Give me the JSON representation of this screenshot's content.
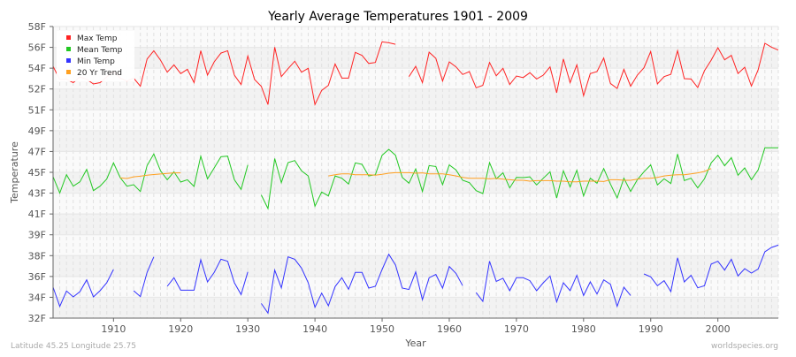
{
  "chart_data": {
    "type": "line",
    "title": "Yearly Average Temperatures 1901 - 2009",
    "xlabel": "Year",
    "ylabel": "Temperature",
    "x": {
      "start": 1901,
      "end": 2009
    },
    "xlim": [
      1901,
      2009
    ],
    "ylim": [
      32,
      58
    ],
    "x_ticks": [
      1910,
      1920,
      1930,
      1940,
      1950,
      1960,
      1970,
      1980,
      1990,
      2000
    ],
    "y_ticks": [
      {
        "value": 32,
        "label": "32F"
      },
      {
        "value": 33.857,
        "label": "34F"
      },
      {
        "value": 35.714,
        "label": "36F"
      },
      {
        "value": 37.571,
        "label": "38F"
      },
      {
        "value": 39.429,
        "label": "39F"
      },
      {
        "value": 41.286,
        "label": "41F"
      },
      {
        "value": 43.143,
        "label": "43F"
      },
      {
        "value": 45,
        "label": "45F"
      },
      {
        "value": 46.857,
        "label": "47F"
      },
      {
        "value": 48.714,
        "label": "49F"
      },
      {
        "value": 50.571,
        "label": "51F"
      },
      {
        "value": 52.429,
        "label": "52F"
      },
      {
        "value": 54.286,
        "label": "54F"
      },
      {
        "value": 56.143,
        "label": "56F"
      },
      {
        "value": 58,
        "label": "58F"
      }
    ],
    "grid": true,
    "legend_position": "top-left",
    "series": [
      {
        "name": "Max Temp",
        "color": "#ff2222",
        "values": [
          54.45,
          53.27,
          53.3,
          53.0,
          53.5,
          53.3,
          52.88,
          53.0,
          53.5,
          54.0,
          53.4,
          53.14,
          53.4,
          52.67,
          55.1,
          55.84,
          55.0,
          53.93,
          54.58,
          53.8,
          54.19,
          53.0,
          55.84,
          53.67,
          54.85,
          55.63,
          55.84,
          53.67,
          52.82,
          55.37,
          53.27,
          52.67,
          51.04,
          56.16,
          53.53,
          54.24,
          54.9,
          53.93,
          54.27,
          51.04,
          52.3,
          52.75,
          54.66,
          53.4,
          53.4,
          55.69,
          55.42,
          54.71,
          54.79,
          56.63,
          56.55,
          56.42,
          null,
          53.53,
          54.45,
          53.0,
          55.71,
          55.16,
          53.14,
          54.85,
          54.4,
          53.72,
          53.98,
          52.54,
          52.75,
          54.79,
          53.61,
          54.27,
          52.82,
          53.59,
          53.45,
          53.88,
          53.32,
          53.67,
          54.4,
          52.09,
          55.11,
          53.0,
          54.58,
          51.83,
          53.8,
          53.98,
          55.19,
          52.93,
          52.48,
          54.19,
          52.67,
          53.67,
          54.32,
          55.77,
          52.88,
          53.53,
          53.74,
          55.84,
          53.35,
          53.32,
          52.56,
          54.06,
          55.0,
          56.11,
          55.03,
          55.42,
          53.8,
          54.37,
          52.69,
          54.14,
          56.5,
          56.16,
          55.9
        ]
      },
      {
        "name": "Mean Temp",
        "color": "#22c822",
        "values": [
          44.6,
          43.16,
          44.79,
          43.76,
          44.16,
          45.26,
          43.37,
          43.76,
          44.4,
          45.84,
          44.53,
          43.76,
          43.9,
          43.29,
          45.6,
          46.63,
          45.13,
          44.34,
          45.05,
          44.13,
          44.34,
          43.74,
          46.44,
          44.42,
          45.39,
          46.39,
          46.44,
          44.34,
          43.48,
          45.66,
          null,
          42.98,
          41.77,
          46.23,
          44.08,
          45.87,
          46.05,
          45.13,
          44.68,
          41.98,
          43.24,
          42.9,
          44.68,
          44.47,
          43.95,
          45.84,
          45.71,
          44.68,
          44.79,
          46.52,
          47.05,
          46.52,
          44.55,
          44.03,
          45.31,
          43.29,
          45.6,
          45.52,
          43.9,
          45.66,
          45.21,
          44.29,
          44.08,
          43.37,
          43.11,
          45.87,
          44.42,
          44.95,
          43.61,
          44.55,
          44.53,
          44.6,
          43.87,
          44.47,
          45.05,
          42.71,
          45.13,
          43.69,
          45.18,
          42.9,
          44.47,
          44.03,
          45.34,
          43.95,
          42.71,
          44.47,
          43.29,
          44.34,
          45.05,
          45.66,
          43.87,
          44.42,
          44.0,
          46.63,
          44.26,
          44.47,
          43.61,
          44.42,
          45.84,
          46.52,
          45.58,
          46.31,
          44.74,
          45.39,
          44.34,
          45.21,
          47.18,
          47.18,
          47.18
        ]
      },
      {
        "name": "Min Temp",
        "color": "#3333ff",
        "values": [
          34.76,
          33.05,
          34.42,
          33.89,
          34.36,
          35.41,
          33.89,
          34.44,
          35.15,
          36.33,
          null,
          null,
          34.44,
          33.92,
          36.07,
          37.46,
          null,
          34.84,
          35.6,
          34.49,
          34.49,
          34.49,
          37.2,
          35.23,
          36.07,
          37.25,
          37.07,
          35.15,
          34.1,
          36.12,
          null,
          33.31,
          32.45,
          36.28,
          34.7,
          37.46,
          37.25,
          36.46,
          35.15,
          32.97,
          34.23,
          33.1,
          34.81,
          35.6,
          34.57,
          36.07,
          36.07,
          34.68,
          34.84,
          36.33,
          37.7,
          36.73,
          34.68,
          34.55,
          36.12,
          33.65,
          35.6,
          35.89,
          34.68,
          36.6,
          35.99,
          34.89,
          null,
          34.28,
          33.5,
          37.07,
          35.28,
          35.55,
          34.44,
          35.6,
          35.6,
          35.34,
          34.44,
          35.15,
          35.76,
          33.44,
          35.15,
          34.44,
          35.81,
          34.02,
          35.23,
          34.15,
          35.41,
          35.02,
          33.05,
          34.76,
          34.02,
          null,
          35.94,
          35.68,
          34.89,
          35.34,
          34.36,
          37.38,
          35.23,
          35.81,
          34.7,
          34.89,
          36.81,
          37.07,
          36.28,
          37.25,
          35.76,
          36.41,
          36.02,
          36.38,
          37.91,
          38.3,
          38.51
        ]
      },
      {
        "name": "20 Yr Trend",
        "color": "#ffa020",
        "values": [
          null,
          null,
          null,
          null,
          null,
          null,
          null,
          null,
          null,
          null,
          44.5,
          44.45,
          44.6,
          44.65,
          44.75,
          44.8,
          44.85,
          44.9,
          44.95,
          44.95,
          null,
          null,
          null,
          null,
          null,
          null,
          null,
          null,
          null,
          null,
          null,
          null,
          null,
          null,
          null,
          null,
          null,
          null,
          null,
          null,
          null,
          44.68,
          44.79,
          44.87,
          44.87,
          44.79,
          44.79,
          44.79,
          44.74,
          44.82,
          44.92,
          44.97,
          44.97,
          44.97,
          44.92,
          44.95,
          44.87,
          44.87,
          44.87,
          44.79,
          44.68,
          44.55,
          44.47,
          44.47,
          44.47,
          44.42,
          44.47,
          44.39,
          44.34,
          44.29,
          44.29,
          44.21,
          44.26,
          44.26,
          44.26,
          44.21,
          44.21,
          44.16,
          44.16,
          44.21,
          44.21,
          44.21,
          44.18,
          44.34,
          44.34,
          44.29,
          44.29,
          44.39,
          44.47,
          44.47,
          44.55,
          44.68,
          44.74,
          44.79,
          44.79,
          44.87,
          44.95,
          45.08,
          45.34,
          null,
          null,
          null,
          null,
          null,
          null,
          null,
          null,
          null,
          null
        ]
      }
    ]
  },
  "footer": {
    "location": "Latitude 45.25 Longitude 25.75",
    "source": "worldspecies.org"
  }
}
